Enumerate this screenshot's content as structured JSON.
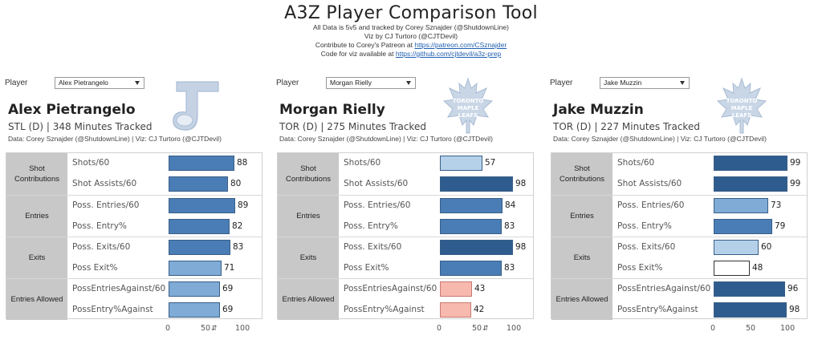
{
  "header": {
    "title": "A3Z Player Comparison Tool",
    "line1": "All Data is 5v5 and tracked by Corey Sznajder (@ShutdownLine)",
    "line2": "Viz by CJ Turtoro (@CJTDevil)",
    "line3_prefix": "Contribute to Corey's Patreon at ",
    "line3_link": "https://patreon.com/CSznajder",
    "line4_prefix": "Code for viz available at ",
    "line4_link": "https://github.com/cjtdevil/a3z-prep"
  },
  "colors": {
    "dark_blue": "#2e5c8e",
    "mid_blue": "#4a7db5",
    "light_blue": "#7fabd6",
    "pale_blue": "#b5d1ea",
    "white": "#ffffff",
    "pink": "#f7b8ae",
    "category_bg": "#c8c8c8"
  },
  "axis": {
    "ticks": [
      "0",
      "50",
      "100"
    ],
    "sort_icon": "sort-descending-icon"
  },
  "panels": [
    {
      "player_label": "Player",
      "dropdown_value": "Alex Pietrangelo",
      "name": "Alex Pietrangelo",
      "info": "STL (D) | 348 Minutes Tracked",
      "credit": "Data: Corey Sznajder (@ShutdownLine) | Viz: CJ Turtoro (@CJTDevil)",
      "logo": "st-louis-blues-logo-icon",
      "groups": [
        {
          "category": "Shot Contributions",
          "rows": [
            {
              "label": "Shots/60",
              "value": 88,
              "color": "#4a7db5"
            },
            {
              "label": "Shot Assists/60",
              "value": 80,
              "color": "#4a7db5"
            }
          ]
        },
        {
          "category": "Entries",
          "rows": [
            {
              "label": "Poss. Entries/60",
              "value": 89,
              "color": "#4a7db5"
            },
            {
              "label": "Poss. Entry%",
              "value": 82,
              "color": "#4a7db5"
            }
          ]
        },
        {
          "category": "Exits",
          "rows": [
            {
              "label": "Poss. Exits/60",
              "value": 83,
              "color": "#4a7db5"
            },
            {
              "label": "Poss Exit%",
              "value": 71,
              "color": "#7fabd6"
            }
          ]
        },
        {
          "category": "Entries Allowed",
          "rows": [
            {
              "label": "PossEntriesAgainst/60",
              "value": 69,
              "color": "#7fabd6"
            },
            {
              "label": "PossEntry%Against",
              "value": 69,
              "color": "#7fabd6"
            }
          ]
        }
      ]
    },
    {
      "player_label": "Player",
      "dropdown_value": "Morgan Rielly",
      "name": "Morgan Rielly",
      "info": "TOR (D) | 275 Minutes Tracked",
      "credit": "Data: Corey Sznajder (@ShutdownLine) | Viz: CJ Turtoro (@CJTDevil)",
      "logo": "toronto-maple-leafs-logo-icon",
      "logo_text": [
        "TORONTO",
        "MAPLE",
        "LEAFS"
      ],
      "groups": [
        {
          "category": "Shot Contributions",
          "rows": [
            {
              "label": "Shots/60",
              "value": 57,
              "color": "#b5d1ea"
            },
            {
              "label": "Shot Assists/60",
              "value": 98,
              "color": "#2e5c8e"
            }
          ]
        },
        {
          "category": "Entries",
          "rows": [
            {
              "label": "Poss. Entries/60",
              "value": 84,
              "color": "#4a7db5"
            },
            {
              "label": "Poss. Entry%",
              "value": 83,
              "color": "#4a7db5"
            }
          ]
        },
        {
          "category": "Exits",
          "rows": [
            {
              "label": "Poss. Exits/60",
              "value": 98,
              "color": "#2e5c8e"
            },
            {
              "label": "Poss Exit%",
              "value": 83,
              "color": "#4a7db5"
            }
          ]
        },
        {
          "category": "Entries Allowed",
          "rows": [
            {
              "label": "PossEntriesAgainst/60",
              "value": 43,
              "color": "#f7b8ae"
            },
            {
              "label": "PossEntry%Against",
              "value": 42,
              "color": "#f7b8ae"
            }
          ]
        }
      ]
    },
    {
      "player_label": "Player",
      "dropdown_value": "Jake Muzzin",
      "name": "Jake Muzzin",
      "info": "TOR (D) | 227 Minutes Tracked",
      "credit": "Data: Corey Sznajder (@ShutdownLine) | Viz: CJ Turtoro (@CJTDevil)",
      "logo": "toronto-maple-leafs-logo-icon",
      "logo_text": [
        "TORONTO",
        "MAPLE",
        "LEAFS"
      ],
      "groups": [
        {
          "category": "Shot Contributions",
          "rows": [
            {
              "label": "Shots/60",
              "value": 99,
              "color": "#2e5c8e"
            },
            {
              "label": "Shot Assists/60",
              "value": 99,
              "color": "#2e5c8e"
            }
          ]
        },
        {
          "category": "Entries",
          "rows": [
            {
              "label": "Poss. Entries/60",
              "value": 73,
              "color": "#7fabd6"
            },
            {
              "label": "Poss. Entry%",
              "value": 79,
              "color": "#4a7db5"
            }
          ]
        },
        {
          "category": "Exits",
          "rows": [
            {
              "label": "Poss. Exits/60",
              "value": 60,
              "color": "#b5d1ea"
            },
            {
              "label": "Poss Exit%",
              "value": 48,
              "color": "#ffffff"
            }
          ]
        },
        {
          "category": "Entries Allowed",
          "rows": [
            {
              "label": "PossEntriesAgainst/60",
              "value": 96,
              "color": "#2e5c8e"
            },
            {
              "label": "PossEntry%Against",
              "value": 98,
              "color": "#2e5c8e"
            }
          ]
        }
      ]
    }
  ]
}
